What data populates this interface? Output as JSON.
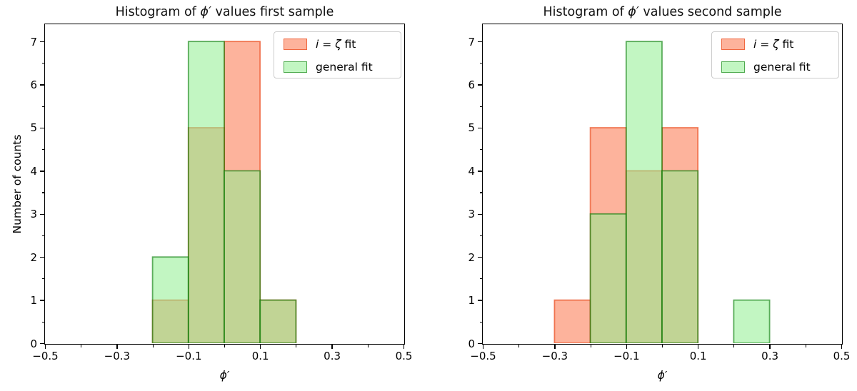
{
  "page": {
    "background": "#ffffff"
  },
  "colors": {
    "salmon_fill": "rgba(252,109,65,0.52)",
    "salmon_edge": "rgba(233,60,10,0.62)",
    "green_fill": "rgba(144,238,144,0.55)",
    "green_edge": "rgba(0,120,0,0.6)",
    "spine": "#000000",
    "text": "#000000",
    "legend_border": "#cccccc"
  },
  "chart_data": [
    {
      "type": "bar",
      "kind": "histogram",
      "title": "Histogram of ϕ′ values first sample",
      "title_parts": {
        "prefix": "Histogram of ",
        "math": "ϕ′",
        "suffix": " values first sample"
      },
      "xlabel": "ϕ′",
      "ylabel": "Number of counts",
      "xlim": [
        -0.5,
        0.5
      ],
      "ylim": [
        0,
        7.4
      ],
      "bin_width": 0.1,
      "grid": false,
      "legend_position": "upper right",
      "xticks": [
        {
          "v": -0.5,
          "label": "−0.5"
        },
        {
          "v": -0.3,
          "label": "−0.3"
        },
        {
          "v": -0.1,
          "label": "−0.1"
        },
        {
          "v": 0.1,
          "label": "0.1"
        },
        {
          "v": 0.3,
          "label": "0.3"
        },
        {
          "v": 0.5,
          "label": "0.5"
        }
      ],
      "xminorticks": [
        -0.4,
        -0.2,
        0.0,
        0.2,
        0.4
      ],
      "yticks": [
        {
          "v": 0,
          "label": "0"
        },
        {
          "v": 1,
          "label": "1"
        },
        {
          "v": 2,
          "label": "2"
        },
        {
          "v": 3,
          "label": "3"
        },
        {
          "v": 4,
          "label": "4"
        },
        {
          "v": 5,
          "label": "5"
        },
        {
          "v": 6,
          "label": "6"
        },
        {
          "v": 7,
          "label": "7"
        }
      ],
      "yminorticks": [
        0.5,
        1.5,
        2.5,
        3.5,
        4.5,
        5.5,
        6.5
      ],
      "series": [
        {
          "key": "salmon",
          "label": "i = ζ fit",
          "label_parts": [
            {
              "text": "i",
              "italic": true
            },
            {
              "text": " = "
            },
            {
              "text": "ζ",
              "italic": true
            },
            {
              "text": " fit"
            }
          ],
          "bins": [
            {
              "start": -0.2,
              "end": -0.1,
              "count": 1
            },
            {
              "start": -0.1,
              "end": 0.0,
              "count": 5
            },
            {
              "start": 0.0,
              "end": 0.1,
              "count": 7
            },
            {
              "start": 0.1,
              "end": 0.2,
              "count": 1
            }
          ]
        },
        {
          "key": "green",
          "label": "general fit",
          "label_parts": [
            {
              "text": "general fit"
            }
          ],
          "bins": [
            {
              "start": -0.2,
              "end": -0.1,
              "count": 2
            },
            {
              "start": -0.1,
              "end": 0.0,
              "count": 7
            },
            {
              "start": 0.0,
              "end": 0.1,
              "count": 4
            },
            {
              "start": 0.1,
              "end": 0.2,
              "count": 1
            }
          ]
        }
      ]
    },
    {
      "type": "bar",
      "kind": "histogram",
      "title": "Histogram of ϕ′ values second sample",
      "title_parts": {
        "prefix": "Histogram of ",
        "math": "ϕ′",
        "suffix": " values second sample"
      },
      "xlabel": "ϕ′",
      "ylabel": "",
      "xlim": [
        -0.5,
        0.5
      ],
      "ylim": [
        0,
        7.4
      ],
      "bin_width": 0.1,
      "grid": false,
      "legend_position": "upper right",
      "xticks": [
        {
          "v": -0.5,
          "label": "−0.5"
        },
        {
          "v": -0.3,
          "label": "−0.3"
        },
        {
          "v": -0.1,
          "label": "−0.1"
        },
        {
          "v": 0.1,
          "label": "0.1"
        },
        {
          "v": 0.3,
          "label": "0.3"
        },
        {
          "v": 0.5,
          "label": "0.5"
        }
      ],
      "xminorticks": [
        -0.4,
        -0.2,
        0.0,
        0.2,
        0.4
      ],
      "yticks": [
        {
          "v": 0,
          "label": "0"
        },
        {
          "v": 1,
          "label": "1"
        },
        {
          "v": 2,
          "label": "2"
        },
        {
          "v": 3,
          "label": "3"
        },
        {
          "v": 4,
          "label": "4"
        },
        {
          "v": 5,
          "label": "5"
        },
        {
          "v": 6,
          "label": "6"
        },
        {
          "v": 7,
          "label": "7"
        }
      ],
      "yminorticks": [
        0.5,
        1.5,
        2.5,
        3.5,
        4.5,
        5.5,
        6.5
      ],
      "series": [
        {
          "key": "salmon",
          "label": "i = ζ fit",
          "label_parts": [
            {
              "text": "i",
              "italic": true
            },
            {
              "text": " = "
            },
            {
              "text": "ζ",
              "italic": true
            },
            {
              "text": " fit"
            }
          ],
          "bins": [
            {
              "start": -0.3,
              "end": -0.2,
              "count": 1
            },
            {
              "start": -0.2,
              "end": -0.1,
              "count": 5
            },
            {
              "start": -0.1,
              "end": 0.0,
              "count": 4
            },
            {
              "start": 0.0,
              "end": 0.1,
              "count": 5
            }
          ]
        },
        {
          "key": "green",
          "label": "general fit",
          "label_parts": [
            {
              "text": "general fit"
            }
          ],
          "bins": [
            {
              "start": -0.2,
              "end": -0.1,
              "count": 3
            },
            {
              "start": -0.1,
              "end": 0.0,
              "count": 7
            },
            {
              "start": 0.0,
              "end": 0.1,
              "count": 4
            },
            {
              "start": 0.2,
              "end": 0.3,
              "count": 1
            }
          ]
        }
      ]
    }
  ]
}
